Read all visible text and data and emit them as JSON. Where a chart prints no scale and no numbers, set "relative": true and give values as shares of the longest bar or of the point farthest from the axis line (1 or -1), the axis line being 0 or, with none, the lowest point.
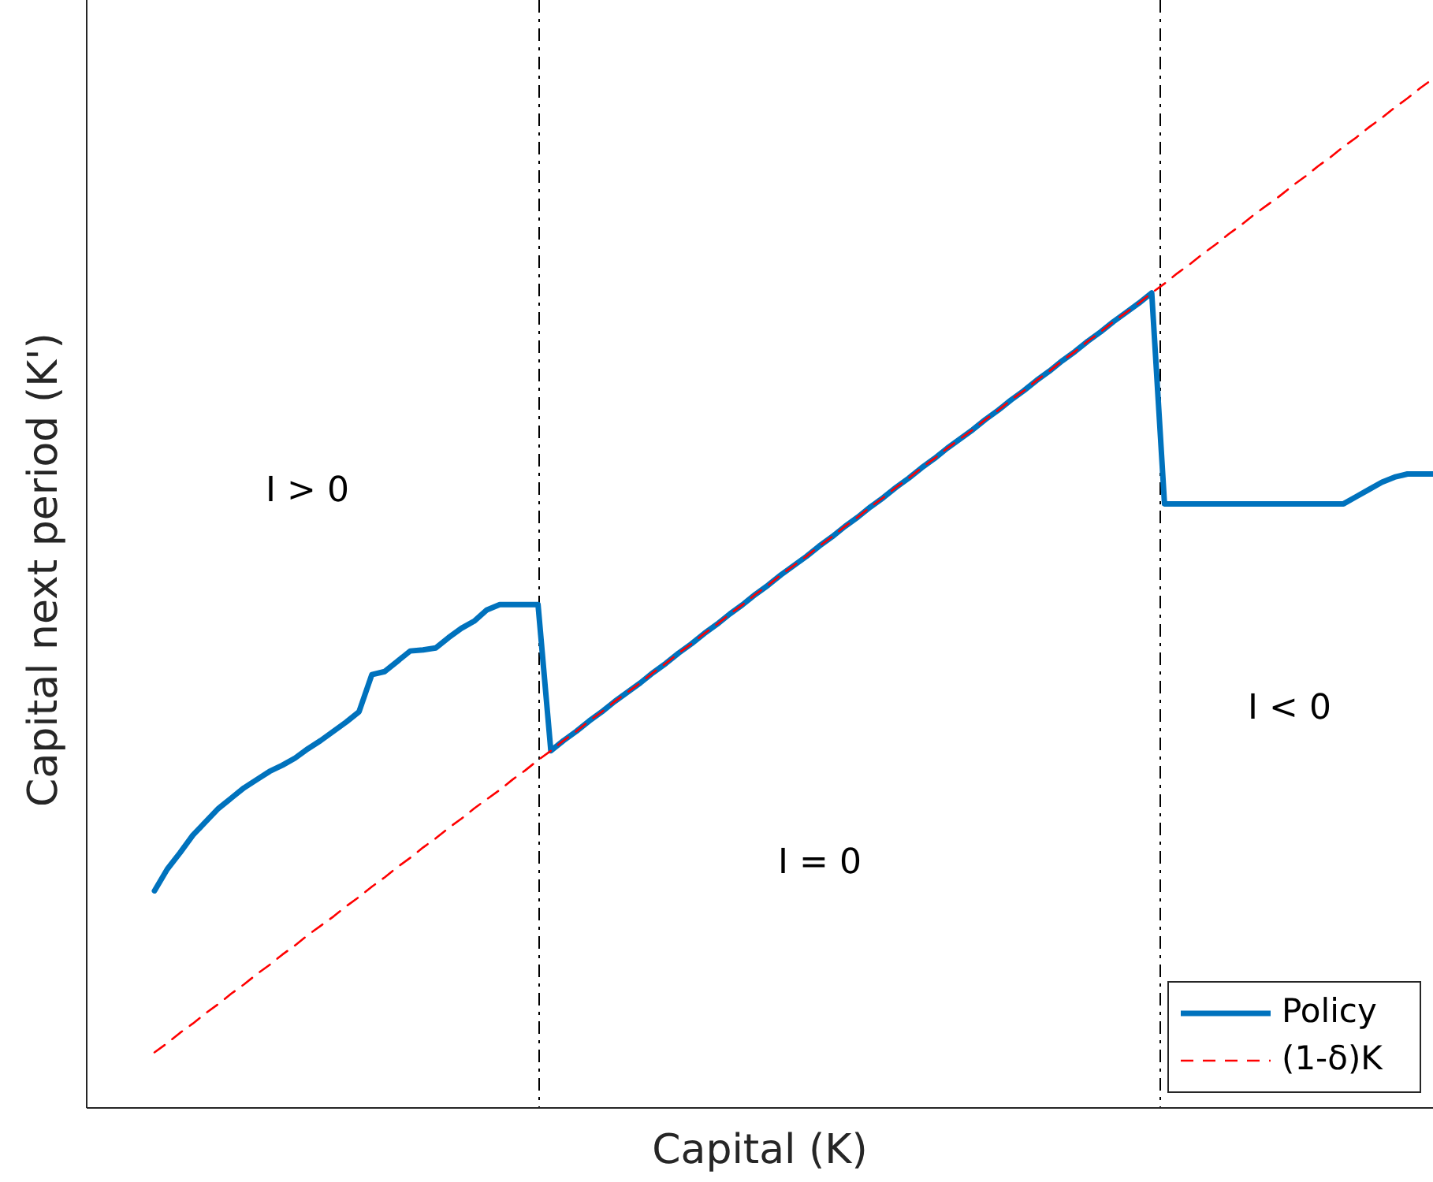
{
  "chart_data": {
    "type": "line",
    "relative": true,
    "xlabel": "Capital (K)",
    "ylabel": "Capital next period (K')",
    "legend": "bottom right",
    "categories": [
      null,
      null,
      null,
      null,
      null,
      null,
      null,
      null,
      null,
      null,
      null,
      null,
      null,
      null,
      null,
      null,
      null,
      null,
      null,
      null,
      null,
      null,
      null,
      null,
      null,
      null,
      null,
      null,
      null,
      null,
      null,
      null,
      null,
      null,
      null,
      null,
      null,
      null,
      null,
      null,
      null,
      null,
      null,
      null,
      null,
      null,
      null,
      null,
      null,
      null,
      null,
      null,
      null,
      null,
      null,
      null,
      null,
      null,
      null,
      null,
      null,
      null,
      null,
      null,
      null,
      null,
      null,
      null,
      null,
      null,
      null,
      null,
      null,
      null,
      null,
      null,
      null,
      null,
      null,
      null,
      null,
      null,
      null,
      null,
      null,
      null,
      null,
      null,
      null,
      null,
      null,
      null,
      null,
      null,
      null,
      null,
      null,
      null,
      null,
      null,
      null
    ],
    "series": [
      {
        "name": "Policy",
        "color": "#0072bd",
        "line_style": "solid",
        "values": [
          0.211,
          0.232,
          0.248,
          0.265,
          0.278,
          0.291,
          0.301,
          0.311,
          0.319,
          0.327,
          0.333,
          0.34,
          0.349,
          0.357,
          0.366,
          0.375,
          0.385,
          0.421,
          0.424,
          0.434,
          0.444,
          0.445,
          0.447,
          0.457,
          0.466,
          0.473,
          0.484,
          0.489,
          0.489,
          0.489,
          0.489,
          0.347,
          0.357,
          0.366,
          0.376,
          0.385,
          0.395,
          0.404,
          0.413,
          0.423,
          0.432,
          0.442,
          0.451,
          0.461,
          0.47,
          0.48,
          0.489,
          0.499,
          0.508,
          0.518,
          0.527,
          0.536,
          0.546,
          0.555,
          0.565,
          0.574,
          0.584,
          0.593,
          0.603,
          0.612,
          0.622,
          0.631,
          0.641,
          0.65,
          0.659,
          0.669,
          0.678,
          0.688,
          0.697,
          0.707,
          0.716,
          0.726,
          0.735,
          0.745,
          0.754,
          0.764,
          0.773,
          0.782,
          0.792,
          0.587,
          0.587,
          0.587,
          0.587,
          0.587,
          0.587,
          0.587,
          0.587,
          0.587,
          0.587,
          0.587,
          0.587,
          0.587,
          0.587,
          0.587,
          0.594,
          0.601,
          0.608,
          0.613,
          0.616,
          0.616,
          0.616
        ]
      },
      {
        "name": "(1-δ)K",
        "color": "#ff0000",
        "line_style": "dashed",
        "values": [
          0.054,
          0.063,
          0.073,
          0.082,
          0.092,
          0.101,
          0.111,
          0.12,
          0.13,
          0.139,
          0.149,
          0.158,
          0.168,
          0.177,
          0.186,
          0.196,
          0.205,
          0.215,
          0.224,
          0.234,
          0.243,
          0.253,
          0.262,
          0.272,
          0.281,
          0.291,
          0.3,
          0.309,
          0.319,
          0.328,
          0.338,
          0.347,
          0.357,
          0.366,
          0.376,
          0.385,
          0.395,
          0.404,
          0.413,
          0.423,
          0.432,
          0.442,
          0.451,
          0.461,
          0.47,
          0.48,
          0.489,
          0.499,
          0.508,
          0.518,
          0.527,
          0.536,
          0.546,
          0.555,
          0.565,
          0.574,
          0.584,
          0.593,
          0.603,
          0.612,
          0.622,
          0.631,
          0.641,
          0.65,
          0.659,
          0.669,
          0.678,
          0.688,
          0.697,
          0.707,
          0.716,
          0.726,
          0.735,
          0.745,
          0.754,
          0.764,
          0.773,
          0.782,
          0.792,
          0.801,
          0.811,
          0.82,
          0.83,
          0.839,
          0.849,
          0.858,
          0.868,
          0.877,
          0.886,
          0.896,
          0.905,
          0.915,
          0.924,
          0.934,
          0.943,
          0.953,
          0.962,
          0.972,
          0.981,
          0.991,
          1
        ]
      }
    ],
    "annotations": [
      "I > 0",
      "I = 0",
      "I < 0"
    ]
  }
}
